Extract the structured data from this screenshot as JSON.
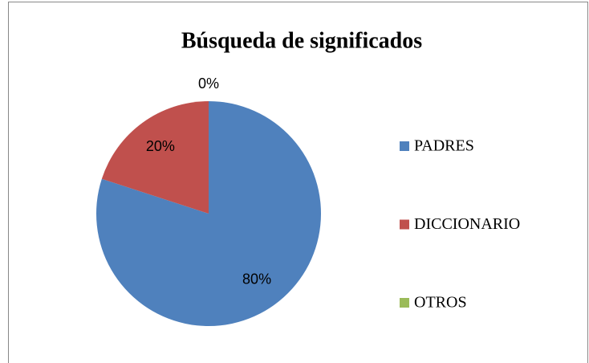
{
  "chart_data": {
    "type": "pie",
    "title": "Búsqueda de significados",
    "categories": [
      "PADRES",
      "DICCIONARIO",
      "OTROS"
    ],
    "values": [
      80,
      20,
      0
    ],
    "value_labels": [
      "80%",
      "20%",
      "0%"
    ],
    "colors": [
      "#4f81bd",
      "#c0504d",
      "#9bbb59"
    ],
    "legend": "right"
  }
}
